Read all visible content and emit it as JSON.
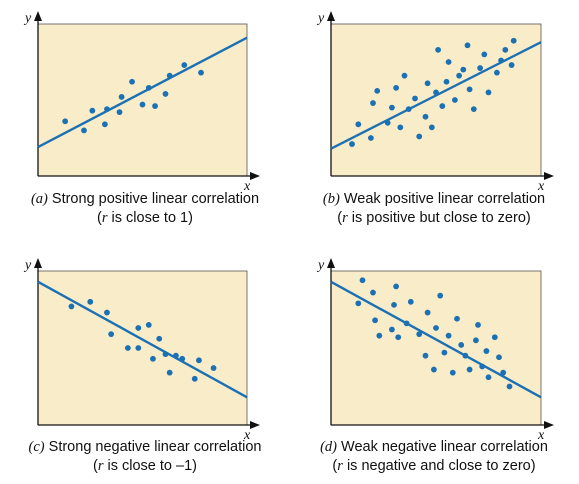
{
  "colors": {
    "panel_fill": "#f9edc9",
    "panel_border": "#555555",
    "marker": "#1c70b4",
    "line": "#1c70b4",
    "axis": "#111111"
  },
  "chart_data": [
    {
      "type": "scatter",
      "title": "",
      "xlabel": "x",
      "ylabel": "y",
      "xlim": [
        0,
        10
      ],
      "ylim": [
        0,
        10
      ],
      "x_ticks_shown": false,
      "y_ticks_shown": false,
      "grid": false,
      "caption": {
        "prefix": "(a)",
        "line1": "Strong positive linear correlation",
        "line2_var": "r",
        "line2": "is close to 1"
      },
      "regression_line": {
        "x": [
          0,
          10
        ],
        "y": [
          1.9,
          9.1
        ]
      },
      "points": {
        "x": [
          1.3,
          2.2,
          2.6,
          3.2,
          3.3,
          3.9,
          4.0,
          4.5,
          5.0,
          5.3,
          5.6,
          6.1,
          6.3,
          7.0,
          7.8
        ],
        "y": [
          3.6,
          3.0,
          4.3,
          3.4,
          4.4,
          4.2,
          5.2,
          6.2,
          4.7,
          5.8,
          4.6,
          5.4,
          6.6,
          7.3,
          6.8
        ]
      }
    },
    {
      "type": "scatter",
      "title": "",
      "xlabel": "x",
      "ylabel": "y",
      "xlim": [
        0,
        10
      ],
      "ylim": [
        0,
        10
      ],
      "x_ticks_shown": false,
      "y_ticks_shown": false,
      "grid": false,
      "caption": {
        "prefix": "(b)",
        "line1": "Weak positive linear correlation",
        "line2_var": "r",
        "line2": "is positive but close to zero"
      },
      "regression_line": {
        "x": [
          0,
          10
        ],
        "y": [
          1.8,
          8.8
        ]
      },
      "points": {
        "x": [
          1.0,
          1.3,
          1.9,
          2.0,
          2.2,
          2.7,
          2.9,
          3.1,
          3.3,
          3.5,
          3.7,
          4.0,
          4.2,
          4.5,
          4.6,
          4.8,
          5.0,
          5.1,
          5.3,
          5.5,
          5.6,
          5.9,
          6.1,
          6.3,
          6.5,
          6.6,
          6.8,
          7.1,
          7.3,
          7.5,
          7.9,
          8.1,
          8.3,
          8.6,
          8.7
        ],
        "y": [
          2.1,
          3.4,
          2.5,
          4.8,
          5.6,
          3.5,
          4.5,
          5.8,
          3.2,
          6.6,
          4.4,
          5.1,
          2.6,
          3.9,
          6.1,
          3.2,
          5.5,
          8.3,
          4.6,
          6.2,
          7.5,
          5.0,
          6.6,
          7.0,
          8.6,
          5.7,
          4.4,
          7.1,
          8.0,
          5.5,
          6.8,
          7.6,
          8.3,
          7.3,
          8.9
        ]
      }
    },
    {
      "type": "scatter",
      "title": "",
      "xlabel": "x",
      "ylabel": "y",
      "xlim": [
        0,
        10
      ],
      "ylim": [
        0,
        10
      ],
      "x_ticks_shown": false,
      "y_ticks_shown": false,
      "grid": false,
      "caption": {
        "prefix": "(c)",
        "line1": "Strong negative linear correlation",
        "line2_var": "r",
        "line2": "is close to –1"
      },
      "regression_line": {
        "x": [
          0,
          10
        ],
        "y": [
          9.3,
          1.8
        ]
      },
      "points": {
        "x": [
          1.6,
          2.5,
          3.3,
          3.5,
          4.3,
          4.8,
          4.8,
          5.3,
          5.5,
          5.8,
          6.1,
          6.3,
          6.6,
          6.9,
          7.5,
          7.7,
          8.4
        ],
        "y": [
          7.7,
          8.0,
          7.3,
          5.9,
          5.0,
          6.3,
          5.0,
          6.5,
          4.3,
          5.6,
          4.6,
          3.4,
          4.5,
          4.3,
          3.0,
          4.2,
          3.7
        ]
      }
    },
    {
      "type": "scatter",
      "title": "",
      "xlabel": "x",
      "ylabel": "y",
      "xlim": [
        0,
        10
      ],
      "ylim": [
        0,
        10
      ],
      "x_ticks_shown": false,
      "y_ticks_shown": false,
      "grid": false,
      "caption": {
        "prefix": "(d)",
        "line1": "Weak negative linear correlation",
        "line2_var": "r",
        "line2": "is negative and close to zero"
      },
      "regression_line": {
        "x": [
          0,
          10
        ],
        "y": [
          9.3,
          1.8
        ]
      },
      "points": {
        "x": [
          1.3,
          1.5,
          2.0,
          2.1,
          2.3,
          2.9,
          3.0,
          3.1,
          3.2,
          3.6,
          3.8,
          4.2,
          4.5,
          4.6,
          4.9,
          5.0,
          5.2,
          5.4,
          5.6,
          5.8,
          6.0,
          6.2,
          6.4,
          6.6,
          6.9,
          7.0,
          7.2,
          7.4,
          7.5,
          7.8,
          8.0,
          8.2,
          8.5
        ],
        "y": [
          7.9,
          9.4,
          8.6,
          6.8,
          5.8,
          6.2,
          7.8,
          9.0,
          5.7,
          6.6,
          8.0,
          5.9,
          4.5,
          7.3,
          3.6,
          6.3,
          8.4,
          4.7,
          5.8,
          3.4,
          6.9,
          5.2,
          4.5,
          3.6,
          5.5,
          6.5,
          3.8,
          4.8,
          3.1,
          5.7,
          4.4,
          3.4,
          2.5
        ]
      }
    }
  ]
}
